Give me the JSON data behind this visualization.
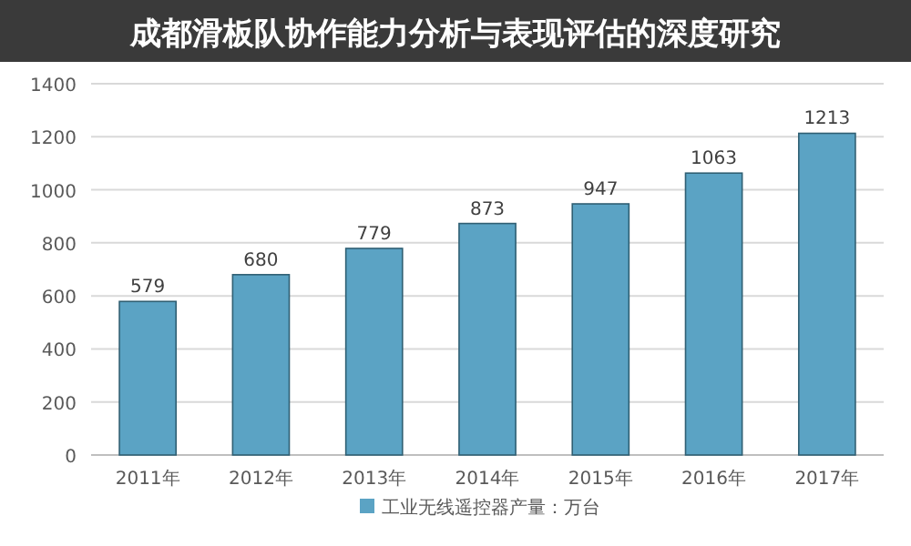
{
  "chart_data": {
    "type": "bar",
    "title": "成都滑板队协作能力分析与表现评估的深度研究",
    "categories": [
      "2011年",
      "2012年",
      "2013年",
      "2014年",
      "2015年",
      "2016年",
      "2017年"
    ],
    "series": [
      {
        "name": "工业无线遥控器产量：万台",
        "color": "#5ba3c4",
        "values": [
          579,
          680,
          779,
          873,
          947,
          1063,
          1213
        ]
      }
    ],
    "ylim": [
      0,
      1400
    ],
    "yticks": [
      0,
      200,
      400,
      600,
      800,
      1000,
      1200,
      1400
    ],
    "grid": "y",
    "legend": "bottom",
    "data_labels": true
  }
}
